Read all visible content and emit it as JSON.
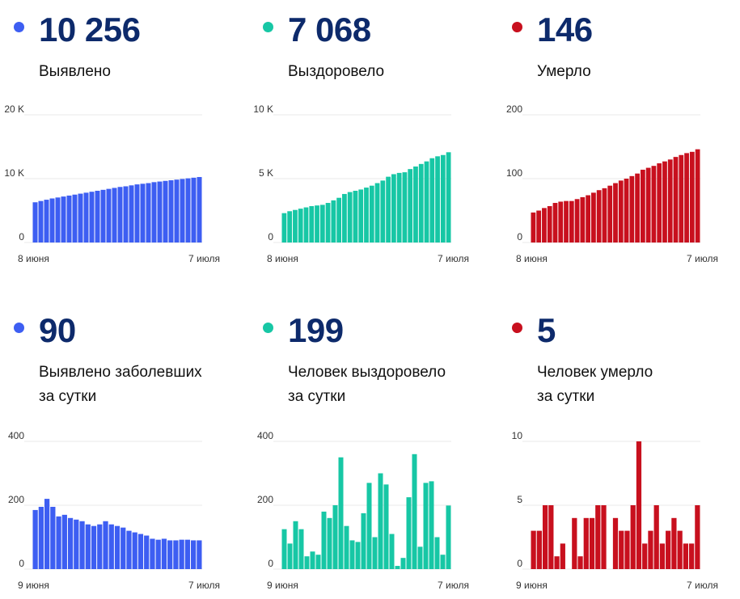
{
  "panels": [
    {
      "value": "10 256",
      "label_lines": [
        "Выявлено"
      ],
      "color": "#3d5ef2"
    },
    {
      "value": "7 068",
      "label_lines": [
        "Выздоровело"
      ],
      "color": "#17c7a5"
    },
    {
      "value": "146",
      "label_lines": [
        "Умерло"
      ],
      "color": "#c8101e"
    },
    {
      "value": "90",
      "label_lines": [
        "Выявлено заболевших",
        "за сутки"
      ],
      "color": "#3d5ef2"
    },
    {
      "value": "199",
      "label_lines": [
        "Человек выздоровело",
        "за сутки"
      ],
      "color": "#17c7a5"
    },
    {
      "value": "5",
      "label_lines": [
        "Человек умерло",
        "за сутки"
      ],
      "color": "#c8101e"
    }
  ],
  "chart_data": [
    {
      "type": "bar",
      "x_start": "8 июня",
      "x_end": "7 июля",
      "yticks": [
        {
          "v": 0,
          "label": "0"
        },
        {
          "v": 10000,
          "label": "10 K"
        },
        {
          "v": 20000,
          "label": "20 K"
        }
      ],
      "ylim": [
        0,
        20000
      ],
      "color": "#3d5ef2",
      "values": [
        6300,
        6500,
        6700,
        6900,
        7050,
        7200,
        7350,
        7500,
        7650,
        7800,
        7950,
        8100,
        8250,
        8400,
        8550,
        8700,
        8800,
        8950,
        9100,
        9200,
        9300,
        9450,
        9550,
        9650,
        9750,
        9850,
        9950,
        10050,
        10150,
        10256
      ]
    },
    {
      "type": "bar",
      "x_start": "8 июня",
      "x_end": "7 июля",
      "yticks": [
        {
          "v": 0,
          "label": "0"
        },
        {
          "v": 5000,
          "label": "5 K"
        },
        {
          "v": 10000,
          "label": "10 K"
        }
      ],
      "ylim": [
        0,
        10000
      ],
      "color": "#17c7a5",
      "values": [
        2300,
        2450,
        2550,
        2650,
        2750,
        2850,
        2900,
        2950,
        3100,
        3300,
        3500,
        3800,
        3950,
        4050,
        4150,
        4300,
        4450,
        4650,
        4850,
        5150,
        5350,
        5450,
        5500,
        5750,
        5950,
        6150,
        6350,
        6600,
        6750,
        6850,
        7068
      ]
    },
    {
      "type": "bar",
      "x_start": "8 июня",
      "x_end": "7 июля",
      "yticks": [
        {
          "v": 0,
          "label": "0"
        },
        {
          "v": 100,
          "label": "100"
        },
        {
          "v": 200,
          "label": "200"
        }
      ],
      "ylim": [
        0,
        200
      ],
      "color": "#c8101e",
      "values": [
        47,
        50,
        54,
        57,
        62,
        64,
        65,
        65,
        68,
        71,
        74,
        78,
        82,
        85,
        89,
        93,
        97,
        100,
        104,
        108,
        114,
        117,
        120,
        124,
        127,
        130,
        134,
        137,
        140,
        142,
        146
      ]
    },
    {
      "type": "bar",
      "x_start": "9 июня",
      "x_end": "7 июля",
      "yticks": [
        {
          "v": 0,
          "label": "0"
        },
        {
          "v": 200,
          "label": "200"
        },
        {
          "v": 400,
          "label": "400"
        }
      ],
      "ylim": [
        0,
        400
      ],
      "color": "#3d5ef2",
      "values": [
        185,
        195,
        220,
        195,
        165,
        170,
        160,
        155,
        150,
        140,
        135,
        140,
        150,
        140,
        135,
        130,
        120,
        115,
        110,
        105,
        95,
        92,
        95,
        90,
        90,
        92,
        92,
        90,
        90
      ]
    },
    {
      "type": "bar",
      "x_start": "9 июня",
      "x_end": "7 июля",
      "yticks": [
        {
          "v": 0,
          "label": "0"
        },
        {
          "v": 200,
          "label": "200"
        },
        {
          "v": 400,
          "label": "400"
        }
      ],
      "ylim": [
        0,
        400
      ],
      "color": "#17c7a5",
      "values": [
        125,
        80,
        150,
        125,
        40,
        55,
        45,
        180,
        160,
        200,
        350,
        135,
        90,
        85,
        175,
        270,
        100,
        300,
        265,
        110,
        10,
        35,
        225,
        360,
        70,
        270,
        275,
        100,
        45,
        199
      ]
    },
    {
      "type": "bar",
      "x_start": "9 июня",
      "x_end": "7 июля",
      "yticks": [
        {
          "v": 0,
          "label": "0"
        },
        {
          "v": 5,
          "label": "5"
        },
        {
          "v": 10,
          "label": "10"
        }
      ],
      "ylim": [
        0,
        10
      ],
      "color": "#c8101e",
      "values": [
        3,
        3,
        5,
        5,
        1,
        2,
        0,
        4,
        1,
        4,
        4,
        5,
        5,
        0,
        4,
        3,
        3,
        5,
        10,
        2,
        3,
        5,
        2,
        3,
        4,
        3,
        2,
        2,
        5
      ]
    }
  ]
}
